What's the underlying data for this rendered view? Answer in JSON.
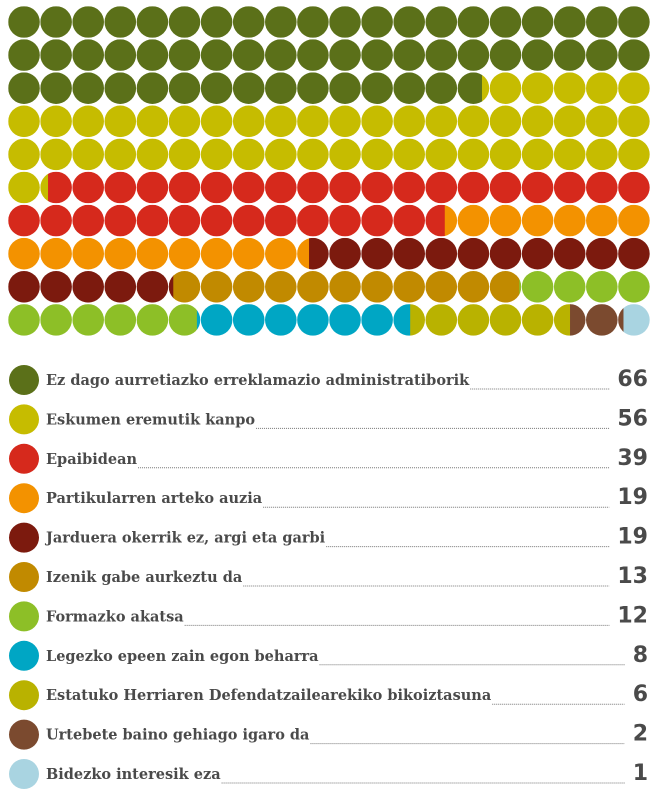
{
  "chart_data": {
    "type": "waffle",
    "categories": [
      "Ez dago aurretiazko erreklamazio administratiborik",
      "Eskumen eremutik kanpo",
      "Epaibidean",
      "Partikularren arteko auzia",
      "Jarduera okerrik ez, argi eta garbi",
      "Izenik gabe aurkeztu da",
      "Formazko akatsa",
      "Legezko epeen zain egon beharra",
      "Estatuko Herriaren Defendatzailearekiko bikoiztasuna",
      "Urtebete baino gehiago igaro da",
      "Bidezko interesik eza"
    ],
    "values": [
      66,
      56,
      39,
      19,
      19,
      13,
      12,
      8,
      6,
      2,
      1
    ],
    "colors": [
      "#5b7019",
      "#c6bc00",
      "#d6291c",
      "#f39200",
      "#7c1a0e",
      "#c18a00",
      "#8dbf27",
      "#00a6c4",
      "#b9b200",
      "#7b4a2f",
      "#a9d4e1"
    ]
  }
}
